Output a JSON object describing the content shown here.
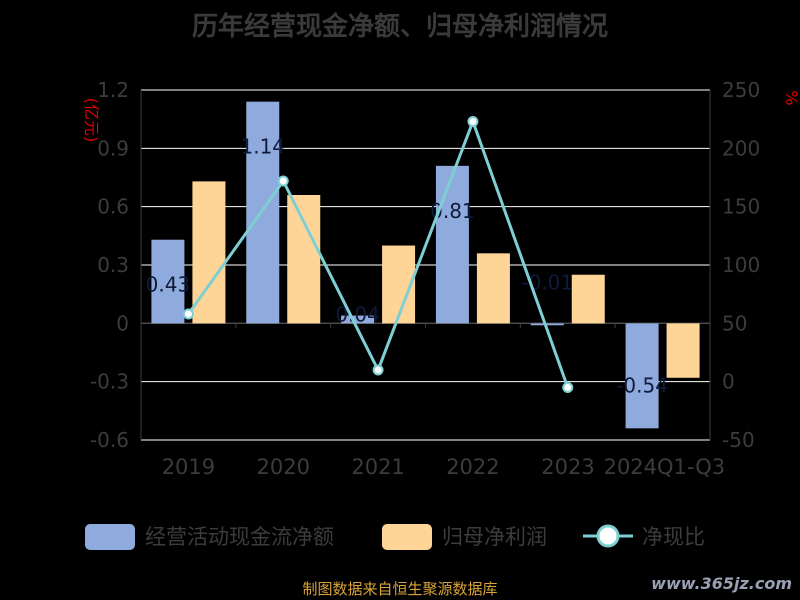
{
  "title": "历年经营现金净额、归母净利润情况",
  "source": "制图数据来自恒生聚源数据库",
  "watermark": "www.365jz.com",
  "chart_data": {
    "type": "bar",
    "categories": [
      "2019",
      "2020",
      "2021",
      "2022",
      "2023",
      "2024Q1-Q3"
    ],
    "series": [
      {
        "name": "经营活动现金流净额",
        "type": "bar",
        "axis": "left",
        "color": "#8faadc",
        "values": [
          0.43,
          1.14,
          0.04,
          0.81,
          -0.01,
          -0.54
        ],
        "labels": [
          "0.43",
          "1.14",
          "0.04",
          "0.81",
          "-0.01",
          "-0.54"
        ]
      },
      {
        "name": "归母净利润",
        "type": "bar",
        "axis": "left",
        "color": "#ffd597",
        "values": [
          0.73,
          0.66,
          0.4,
          0.36,
          0.25,
          -0.28
        ]
      },
      {
        "name": "净现比",
        "type": "line",
        "axis": "right",
        "color": "#7ecfd3",
        "values": [
          58,
          172,
          10,
          223,
          -5,
          null
        ]
      }
    ],
    "ylabel_left": "(亿元)",
    "ylabel_right": "%",
    "ylim_left": [
      -0.6,
      1.2
    ],
    "yticks_left": [
      "1.2",
      "0.9",
      "0.6",
      "0.3",
      "0",
      "-0.3",
      "-0.6"
    ],
    "ylim_right": [
      -50,
      250
    ],
    "yticks_right": [
      "250",
      "200",
      "150",
      "100",
      "50",
      "0",
      "-50"
    ],
    "grid": true,
    "legend_position": "bottom"
  }
}
